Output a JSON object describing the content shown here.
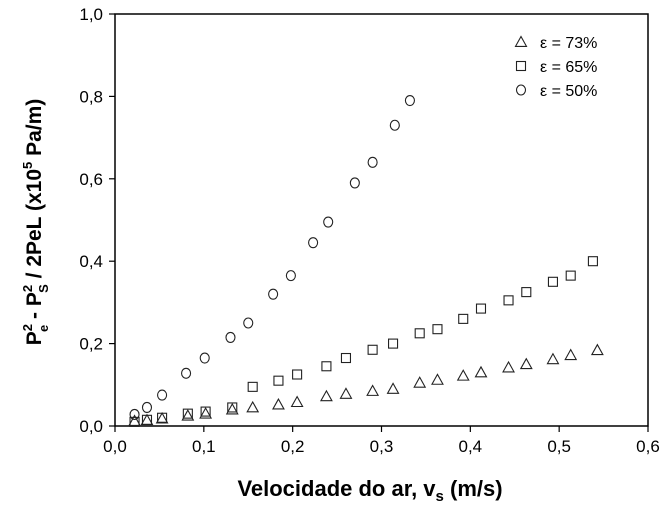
{
  "chart_data": {
    "type": "scatter",
    "title": "",
    "xlabel": "Velocidade do ar, v",
    "xlabel_subscript": "s",
    "xlabel_suffix": " (m/s)",
    "ylabel_parts": {
      "p": "P",
      "sup2": "2",
      "sub_e": "e",
      "minus": " - ",
      "sub_s": "S",
      "mid": " / 2PeL (x10",
      "sup5": "5",
      "end": " Pa/m)"
    },
    "xlim": [
      0.0,
      0.6
    ],
    "ylim": [
      0.0,
      1.0
    ],
    "xticks": [
      "0,0",
      "0,1",
      "0,2",
      "0,3",
      "0,4",
      "0,5",
      "0,6"
    ],
    "yticks": [
      "0,0",
      "0,2",
      "0,4",
      "0,6",
      "0,8",
      "1,0"
    ],
    "grid": false,
    "legend_position": "top-right",
    "series": [
      {
        "name": "ε = 73%",
        "marker": "triangle",
        "x": [
          0.022,
          0.036,
          0.053,
          0.082,
          0.102,
          0.132,
          0.155,
          0.184,
          0.205,
          0.238,
          0.26,
          0.29,
          0.313,
          0.343,
          0.363,
          0.392,
          0.412,
          0.443,
          0.463,
          0.493,
          0.513,
          0.543
        ],
        "y": [
          0.012,
          0.014,
          0.018,
          0.025,
          0.03,
          0.04,
          0.045,
          0.052,
          0.058,
          0.072,
          0.078,
          0.085,
          0.09,
          0.105,
          0.112,
          0.122,
          0.13,
          0.142,
          0.15,
          0.162,
          0.172,
          0.184
        ]
      },
      {
        "name": "ε = 65%",
        "marker": "square",
        "x": [
          0.022,
          0.036,
          0.053,
          0.082,
          0.102,
          0.132,
          0.155,
          0.184,
          0.205,
          0.238,
          0.26,
          0.29,
          0.313,
          0.343,
          0.363,
          0.392,
          0.412,
          0.443,
          0.463,
          0.493,
          0.513,
          0.538
        ],
        "y": [
          0.01,
          0.015,
          0.02,
          0.03,
          0.035,
          0.045,
          0.095,
          0.11,
          0.125,
          0.145,
          0.165,
          0.185,
          0.2,
          0.225,
          0.235,
          0.26,
          0.285,
          0.305,
          0.325,
          0.35,
          0.365,
          0.4
        ]
      },
      {
        "name": "ε = 50%",
        "marker": "circle",
        "x": [
          0.022,
          0.036,
          0.053,
          0.08,
          0.101,
          0.13,
          0.15,
          0.178,
          0.198,
          0.223,
          0.24,
          0.27,
          0.29,
          0.315,
          0.332
        ],
        "y": [
          0.028,
          0.045,
          0.075,
          0.128,
          0.165,
          0.215,
          0.25,
          0.32,
          0.365,
          0.445,
          0.495,
          0.59,
          0.64,
          0.73,
          0.79
        ]
      }
    ]
  }
}
